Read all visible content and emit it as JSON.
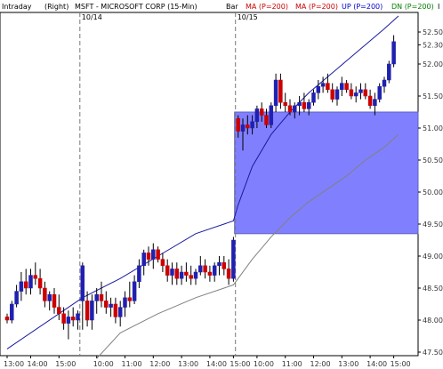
{
  "header": {
    "left": "Intraday",
    "side": "(Right)",
    "title": "MSFT - MICROSOFT CORP  (15-Min)",
    "bar_label": "Bar",
    "legend": [
      {
        "label": "MA (P=200)",
        "color": "#cc0000"
      },
      {
        "label": "MA (P=200)",
        "color": "#cc0000"
      },
      {
        "label": "UP (P=200)",
        "color": "#0000cc"
      },
      {
        "label": "DN (P=200)",
        "color": "#008000"
      }
    ],
    "extra": "I"
  },
  "chart_data": {
    "type": "candlestick",
    "session_markers": [
      {
        "label": "10/14",
        "bar_index": 16
      },
      {
        "label": "10/15",
        "bar_index": 49
      }
    ],
    "x_tick_labels": [
      {
        "label": "13:00",
        "bar_index": 0
      },
      {
        "label": "14:00",
        "bar_index": 5
      },
      {
        "label": "15:00",
        "bar_index": 11
      },
      {
        "label": "10:00",
        "bar_index": 19
      },
      {
        "label": "11:00",
        "bar_index": 25
      },
      {
        "label": "12:00",
        "bar_index": 31
      },
      {
        "label": "13:00",
        "bar_index": 37
      },
      {
        "label": "14:00",
        "bar_index": 43
      },
      {
        "label": "15:00",
        "bar_index": 48
      },
      {
        "label": "10:00",
        "bar_index": 53
      },
      {
        "label": "11:00",
        "bar_index": 59
      },
      {
        "label": "12:00",
        "bar_index": 65
      },
      {
        "label": "13:00",
        "bar_index": 71
      },
      {
        "label": "14:00",
        "bar_index": 77
      },
      {
        "label": "15:00",
        "bar_index": 82
      }
    ],
    "y_ticks": [
      47.5,
      48.0,
      48.5,
      49.0,
      49.5,
      50.0,
      50.5,
      51.0,
      51.5,
      52.0,
      52.3,
      52.5
    ],
    "y_tick_labels": [
      "47.50",
      "48.00",
      "48.50",
      "49.00",
      "49.50",
      "50.00",
      "50.50",
      "51.00",
      "51.50",
      "52.00",
      "52.30",
      "52.50"
    ],
    "ylim": [
      47.5,
      52.75
    ],
    "candles": [
      [
        48.05,
        48.1,
        47.95,
        48.0
      ],
      [
        48.0,
        48.3,
        47.95,
        48.25
      ],
      [
        48.25,
        48.55,
        48.2,
        48.45
      ],
      [
        48.45,
        48.75,
        48.3,
        48.6
      ],
      [
        48.6,
        48.8,
        48.4,
        48.5
      ],
      [
        48.5,
        48.8,
        48.4,
        48.7
      ],
      [
        48.7,
        48.9,
        48.55,
        48.65
      ],
      [
        48.65,
        48.8,
        48.4,
        48.5
      ],
      [
        48.5,
        48.6,
        48.2,
        48.3
      ],
      [
        48.3,
        48.45,
        48.15,
        48.4
      ],
      [
        48.4,
        48.5,
        48.1,
        48.2
      ],
      [
        48.2,
        48.4,
        48.0,
        48.1
      ],
      [
        48.1,
        48.2,
        47.85,
        47.95
      ],
      [
        47.95,
        48.15,
        47.7,
        48.05
      ],
      [
        48.05,
        48.2,
        47.9,
        48.0
      ],
      [
        48.0,
        48.15,
        47.85,
        48.1
      ],
      [
        48.3,
        48.9,
        47.85,
        48.85
      ],
      [
        48.3,
        48.45,
        47.9,
        48.0
      ],
      [
        48.0,
        48.4,
        47.85,
        48.3
      ],
      [
        48.3,
        48.5,
        48.1,
        48.4
      ],
      [
        48.4,
        48.6,
        48.2,
        48.3
      ],
      [
        48.3,
        48.45,
        48.1,
        48.2
      ],
      [
        48.2,
        48.35,
        48.05,
        48.25
      ],
      [
        48.25,
        48.35,
        47.95,
        48.05
      ],
      [
        48.05,
        48.3,
        47.9,
        48.2
      ],
      [
        48.2,
        48.45,
        48.05,
        48.35
      ],
      [
        48.35,
        48.6,
        48.2,
        48.3
      ],
      [
        48.3,
        48.7,
        48.25,
        48.6
      ],
      [
        48.6,
        48.95,
        48.5,
        48.85
      ],
      [
        48.85,
        49.1,
        48.7,
        49.05
      ],
      [
        49.05,
        49.15,
        48.85,
        48.95
      ],
      [
        48.95,
        49.2,
        48.8,
        49.1
      ],
      [
        49.1,
        49.15,
        48.9,
        48.95
      ],
      [
        48.95,
        49.05,
        48.75,
        48.85
      ],
      [
        48.85,
        48.95,
        48.6,
        48.7
      ],
      [
        48.7,
        48.9,
        48.55,
        48.8
      ],
      [
        48.8,
        48.9,
        48.55,
        48.65
      ],
      [
        48.65,
        48.85,
        48.55,
        48.75
      ],
      [
        48.75,
        48.9,
        48.6,
        48.7
      ],
      [
        48.7,
        48.85,
        48.55,
        48.65
      ],
      [
        48.65,
        48.8,
        48.55,
        48.75
      ],
      [
        48.75,
        49.0,
        48.7,
        48.85
      ],
      [
        48.85,
        48.95,
        48.65,
        48.75
      ],
      [
        48.75,
        48.85,
        48.6,
        48.7
      ],
      [
        48.7,
        48.9,
        48.6,
        48.85
      ],
      [
        48.85,
        49.0,
        48.7,
        48.9
      ],
      [
        48.9,
        49.0,
        48.7,
        48.8
      ],
      [
        48.8,
        48.95,
        48.55,
        48.65
      ],
      [
        48.65,
        49.3,
        48.6,
        49.25
      ],
      [
        51.15,
        51.2,
        50.85,
        50.95
      ],
      [
        50.95,
        51.15,
        50.65,
        51.05
      ],
      [
        51.05,
        51.2,
        50.9,
        51.0
      ],
      [
        51.0,
        51.2,
        50.9,
        51.1
      ],
      [
        51.1,
        51.35,
        51.0,
        51.3
      ],
      [
        51.3,
        51.4,
        51.1,
        51.2
      ],
      [
        51.2,
        51.3,
        51.0,
        51.05
      ],
      [
        51.05,
        51.4,
        51.0,
        51.35
      ],
      [
        51.35,
        51.85,
        51.25,
        51.75
      ],
      [
        51.75,
        51.85,
        51.3,
        51.4
      ],
      [
        51.4,
        51.55,
        51.25,
        51.35
      ],
      [
        51.35,
        51.45,
        51.2,
        51.25
      ],
      [
        51.25,
        51.4,
        51.15,
        51.35
      ],
      [
        51.35,
        51.5,
        51.2,
        51.4
      ],
      [
        51.4,
        51.55,
        51.25,
        51.3
      ],
      [
        51.3,
        51.45,
        51.2,
        51.4
      ],
      [
        51.4,
        51.6,
        51.35,
        51.55
      ],
      [
        51.55,
        51.75,
        51.45,
        51.65
      ],
      [
        51.65,
        51.8,
        51.55,
        51.7
      ],
      [
        51.7,
        51.85,
        51.55,
        51.6
      ],
      [
        51.6,
        51.7,
        51.4,
        51.45
      ],
      [
        51.45,
        51.65,
        51.35,
        51.6
      ],
      [
        51.6,
        51.8,
        51.5,
        51.7
      ],
      [
        51.7,
        51.75,
        51.55,
        51.6
      ],
      [
        51.6,
        51.7,
        51.45,
        51.5
      ],
      [
        51.5,
        51.65,
        51.4,
        51.55
      ],
      [
        51.55,
        51.7,
        51.45,
        51.6
      ],
      [
        51.6,
        51.7,
        51.45,
        51.5
      ],
      [
        51.5,
        51.6,
        51.3,
        51.35
      ],
      [
        51.35,
        51.55,
        51.2,
        51.45
      ],
      [
        51.45,
        51.7,
        51.4,
        51.65
      ],
      [
        51.65,
        51.8,
        51.55,
        51.75
      ],
      [
        51.75,
        52.05,
        51.7,
        52.0
      ],
      [
        52.0,
        52.45,
        51.95,
        52.35
      ]
    ],
    "up_band": [
      [
        0,
        47.55
      ],
      [
        16,
        48.35
      ],
      [
        24,
        48.65
      ],
      [
        32,
        49.0
      ],
      [
        40,
        49.35
      ],
      [
        48,
        49.55
      ],
      [
        49,
        49.8
      ],
      [
        52,
        50.4
      ],
      [
        56,
        50.9
      ],
      [
        60,
        51.25
      ],
      [
        64,
        51.55
      ],
      [
        68,
        51.8
      ],
      [
        72,
        52.05
      ],
      [
        76,
        52.3
      ],
      [
        80,
        52.55
      ],
      [
        83,
        52.75
      ]
    ],
    "dn_band": [
      [
        19,
        47.4
      ],
      [
        24,
        47.8
      ],
      [
        32,
        48.1
      ],
      [
        40,
        48.35
      ],
      [
        48,
        48.55
      ],
      [
        49,
        48.65
      ],
      [
        52,
        48.95
      ],
      [
        56,
        49.3
      ],
      [
        60,
        49.6
      ],
      [
        64,
        49.85
      ],
      [
        68,
        50.05
      ],
      [
        72,
        50.25
      ],
      [
        76,
        50.5
      ],
      [
        80,
        50.7
      ],
      [
        83,
        50.9
      ]
    ],
    "shaded_box": {
      "x_start_bar": 49,
      "x_end_bar": 84,
      "y_low": 49.35,
      "y_high": 51.25,
      "color": "#8080ff"
    },
    "colors": {
      "up_candle": "#2020b0",
      "down_candle": "#cc0000",
      "up_line": "#1a1aa0",
      "dn_line": "#808080"
    }
  }
}
